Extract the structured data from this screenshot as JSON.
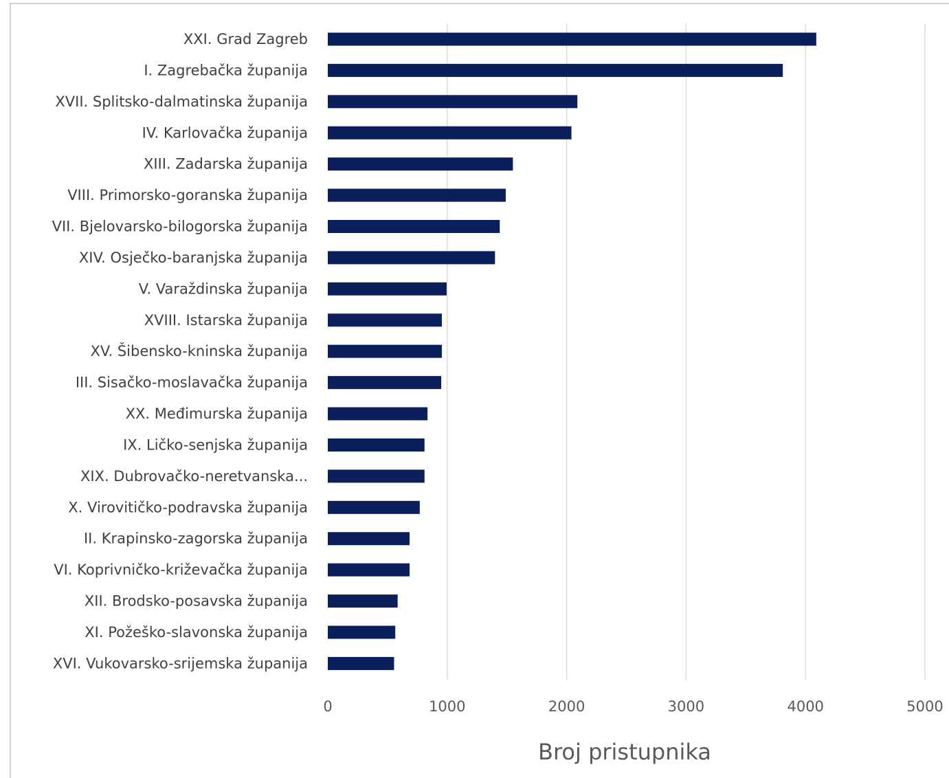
{
  "chart_data": {
    "type": "bar",
    "orientation": "horizontal",
    "categories": [
      "XXI. Grad Zagreb",
      "I. Zagrebačka županija",
      "XVII. Splitsko-dalmatinska županija",
      "IV. Karlovačka županija",
      "XIII. Zadarska županija",
      "VIII. Primorsko-goranska županija",
      "VII. Bjelovarsko-bilogorska županija",
      "XIV. Osječko-baranjska županija",
      "V. Varaždinska županija",
      "XVIII. Istarska županija",
      "XV. Šibensko-kninska županija",
      "III. Sisačko-moslavačka županija",
      "XX. Međimurska županija",
      "IX. Ličko-senjska županija",
      "XIX. Dubrovačko-neretvanska...",
      "X. Virovitičko-podravska županija",
      "II. Krapinsko-zagorska županija",
      "VI. Koprivničko-križevačka županija",
      "XII. Brodsko-posavska županija",
      "XI. Požeško-slavonska županija",
      "XVI. Vukovarsko-srijemska županija"
    ],
    "values": [
      4090,
      3810,
      2090,
      2040,
      1550,
      1490,
      1440,
      1400,
      995,
      955,
      955,
      950,
      835,
      810,
      810,
      770,
      685,
      685,
      585,
      565,
      555
    ],
    "title": "",
    "xlabel": "Broj pristupnika",
    "ylabel": "",
    "xlim": [
      0,
      5000
    ],
    "xticks": [
      "0",
      "1000",
      "2000",
      "3000",
      "4000",
      "5000"
    ],
    "grid": "vertical",
    "legend": "none",
    "bar_color": "#0b1f5c",
    "grid_color": "#d9d9d9"
  }
}
